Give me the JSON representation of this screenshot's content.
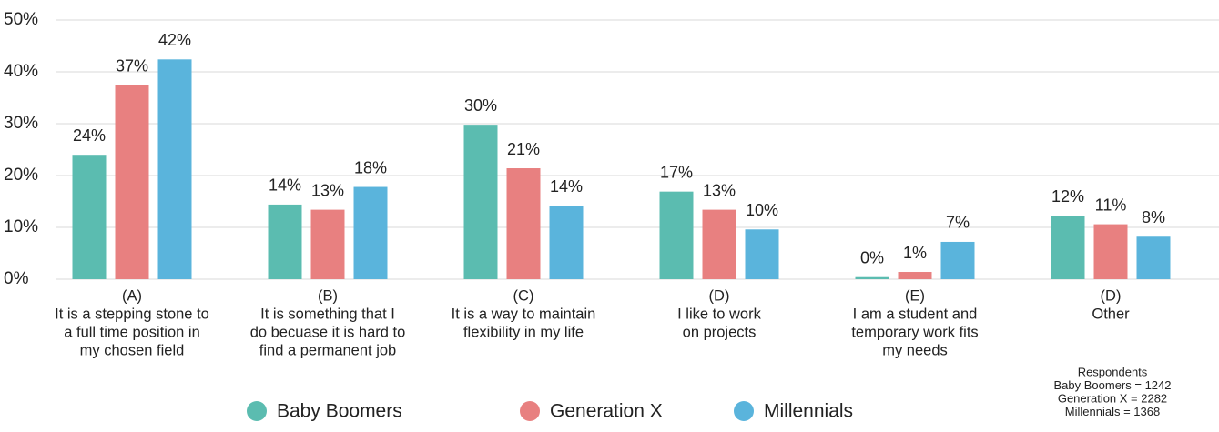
{
  "chart_data": {
    "type": "bar",
    "categories": [
      [
        "(A)",
        "It is a stepping stone to",
        "a full time position in",
        "my chosen field"
      ],
      [
        "(B)",
        "It is something that I",
        "do becuase it is hard to",
        "find a permanent job"
      ],
      [
        "(C)",
        "It is a way to maintain",
        "flexibility in my life"
      ],
      [
        "(D)",
        "I like to work",
        "on projects"
      ],
      [
        "(E)",
        "I am a student and",
        "temporary work fits",
        "my needs"
      ],
      [
        "(D)",
        "Other"
      ]
    ],
    "series": [
      {
        "name": "Baby Boomers",
        "color": "#5bbcb0",
        "values": [
          24,
          14.4,
          29.8,
          16.9,
          0.4,
          12.2
        ],
        "value_labels": [
          "24%",
          "14%",
          "30%",
          "17%",
          "0%",
          "12%"
        ]
      },
      {
        "name": "Generation X",
        "color": "#e88080",
        "values": [
          37.4,
          13.4,
          21.4,
          13.4,
          1.4,
          10.6
        ],
        "value_labels": [
          "37%",
          "13%",
          "21%",
          "13%",
          "1%",
          "11%"
        ]
      },
      {
        "name": "Millennials",
        "color": "#5ab4dc",
        "values": [
          42.4,
          17.8,
          14.2,
          9.6,
          7.2,
          8.2
        ],
        "value_labels": [
          "42%",
          "18%",
          "14%",
          "10%",
          "7%",
          "8%"
        ]
      }
    ],
    "ylim": [
      0,
      50
    ],
    "yticks": [
      {
        "value": 0,
        "label": "0%"
      },
      {
        "value": 10,
        "label": "10%"
      },
      {
        "value": 20,
        "label": "20%"
      },
      {
        "value": 30,
        "label": "30%"
      },
      {
        "value": 40,
        "label": "40%"
      },
      {
        "value": 50,
        "label": "50%"
      }
    ],
    "grid": true,
    "legend": "bottom",
    "note": [
      "Respondents",
      "Baby Boomers = 1242",
      "Generation X = 2282",
      "Millennials = 1368"
    ]
  }
}
